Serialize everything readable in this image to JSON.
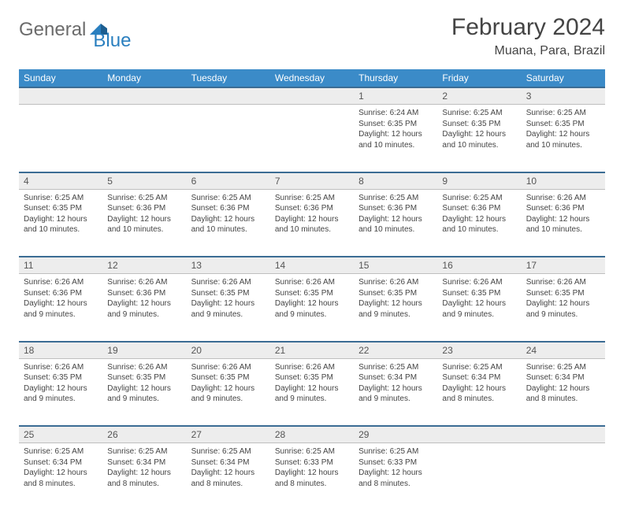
{
  "logo": {
    "word1": "General",
    "word2": "Blue"
  },
  "header": {
    "title": "February 2024",
    "location": "Muana, Para, Brazil"
  },
  "colors": {
    "header_bg": "#3b8bc8",
    "header_text": "#ffffff",
    "daynum_bg": "#ededed",
    "border": "#bfbfbf",
    "row_divider": "#3b6c94",
    "logo_accent": "#2a7fbf",
    "text": "#444444"
  },
  "weekdays": [
    "Sunday",
    "Monday",
    "Tuesday",
    "Wednesday",
    "Thursday",
    "Friday",
    "Saturday"
  ],
  "weeks": [
    {
      "nums": [
        "",
        "",
        "",
        "",
        "1",
        "2",
        "3"
      ],
      "cells": [
        null,
        null,
        null,
        null,
        {
          "sunrise": "Sunrise: 6:24 AM",
          "sunset": "Sunset: 6:35 PM",
          "day1": "Daylight: 12 hours",
          "day2": "and 10 minutes."
        },
        {
          "sunrise": "Sunrise: 6:25 AM",
          "sunset": "Sunset: 6:35 PM",
          "day1": "Daylight: 12 hours",
          "day2": "and 10 minutes."
        },
        {
          "sunrise": "Sunrise: 6:25 AM",
          "sunset": "Sunset: 6:35 PM",
          "day1": "Daylight: 12 hours",
          "day2": "and 10 minutes."
        }
      ]
    },
    {
      "nums": [
        "4",
        "5",
        "6",
        "7",
        "8",
        "9",
        "10"
      ],
      "cells": [
        {
          "sunrise": "Sunrise: 6:25 AM",
          "sunset": "Sunset: 6:35 PM",
          "day1": "Daylight: 12 hours",
          "day2": "and 10 minutes."
        },
        {
          "sunrise": "Sunrise: 6:25 AM",
          "sunset": "Sunset: 6:36 PM",
          "day1": "Daylight: 12 hours",
          "day2": "and 10 minutes."
        },
        {
          "sunrise": "Sunrise: 6:25 AM",
          "sunset": "Sunset: 6:36 PM",
          "day1": "Daylight: 12 hours",
          "day2": "and 10 minutes."
        },
        {
          "sunrise": "Sunrise: 6:25 AM",
          "sunset": "Sunset: 6:36 PM",
          "day1": "Daylight: 12 hours",
          "day2": "and 10 minutes."
        },
        {
          "sunrise": "Sunrise: 6:25 AM",
          "sunset": "Sunset: 6:36 PM",
          "day1": "Daylight: 12 hours",
          "day2": "and 10 minutes."
        },
        {
          "sunrise": "Sunrise: 6:25 AM",
          "sunset": "Sunset: 6:36 PM",
          "day1": "Daylight: 12 hours",
          "day2": "and 10 minutes."
        },
        {
          "sunrise": "Sunrise: 6:26 AM",
          "sunset": "Sunset: 6:36 PM",
          "day1": "Daylight: 12 hours",
          "day2": "and 10 minutes."
        }
      ]
    },
    {
      "nums": [
        "11",
        "12",
        "13",
        "14",
        "15",
        "16",
        "17"
      ],
      "cells": [
        {
          "sunrise": "Sunrise: 6:26 AM",
          "sunset": "Sunset: 6:36 PM",
          "day1": "Daylight: 12 hours",
          "day2": "and 9 minutes."
        },
        {
          "sunrise": "Sunrise: 6:26 AM",
          "sunset": "Sunset: 6:36 PM",
          "day1": "Daylight: 12 hours",
          "day2": "and 9 minutes."
        },
        {
          "sunrise": "Sunrise: 6:26 AM",
          "sunset": "Sunset: 6:35 PM",
          "day1": "Daylight: 12 hours",
          "day2": "and 9 minutes."
        },
        {
          "sunrise": "Sunrise: 6:26 AM",
          "sunset": "Sunset: 6:35 PM",
          "day1": "Daylight: 12 hours",
          "day2": "and 9 minutes."
        },
        {
          "sunrise": "Sunrise: 6:26 AM",
          "sunset": "Sunset: 6:35 PM",
          "day1": "Daylight: 12 hours",
          "day2": "and 9 minutes."
        },
        {
          "sunrise": "Sunrise: 6:26 AM",
          "sunset": "Sunset: 6:35 PM",
          "day1": "Daylight: 12 hours",
          "day2": "and 9 minutes."
        },
        {
          "sunrise": "Sunrise: 6:26 AM",
          "sunset": "Sunset: 6:35 PM",
          "day1": "Daylight: 12 hours",
          "day2": "and 9 minutes."
        }
      ]
    },
    {
      "nums": [
        "18",
        "19",
        "20",
        "21",
        "22",
        "23",
        "24"
      ],
      "cells": [
        {
          "sunrise": "Sunrise: 6:26 AM",
          "sunset": "Sunset: 6:35 PM",
          "day1": "Daylight: 12 hours",
          "day2": "and 9 minutes."
        },
        {
          "sunrise": "Sunrise: 6:26 AM",
          "sunset": "Sunset: 6:35 PM",
          "day1": "Daylight: 12 hours",
          "day2": "and 9 minutes."
        },
        {
          "sunrise": "Sunrise: 6:26 AM",
          "sunset": "Sunset: 6:35 PM",
          "day1": "Daylight: 12 hours",
          "day2": "and 9 minutes."
        },
        {
          "sunrise": "Sunrise: 6:26 AM",
          "sunset": "Sunset: 6:35 PM",
          "day1": "Daylight: 12 hours",
          "day2": "and 9 minutes."
        },
        {
          "sunrise": "Sunrise: 6:25 AM",
          "sunset": "Sunset: 6:34 PM",
          "day1": "Daylight: 12 hours",
          "day2": "and 9 minutes."
        },
        {
          "sunrise": "Sunrise: 6:25 AM",
          "sunset": "Sunset: 6:34 PM",
          "day1": "Daylight: 12 hours",
          "day2": "and 8 minutes."
        },
        {
          "sunrise": "Sunrise: 6:25 AM",
          "sunset": "Sunset: 6:34 PM",
          "day1": "Daylight: 12 hours",
          "day2": "and 8 minutes."
        }
      ]
    },
    {
      "nums": [
        "25",
        "26",
        "27",
        "28",
        "29",
        "",
        ""
      ],
      "cells": [
        {
          "sunrise": "Sunrise: 6:25 AM",
          "sunset": "Sunset: 6:34 PM",
          "day1": "Daylight: 12 hours",
          "day2": "and 8 minutes."
        },
        {
          "sunrise": "Sunrise: 6:25 AM",
          "sunset": "Sunset: 6:34 PM",
          "day1": "Daylight: 12 hours",
          "day2": "and 8 minutes."
        },
        {
          "sunrise": "Sunrise: 6:25 AM",
          "sunset": "Sunset: 6:34 PM",
          "day1": "Daylight: 12 hours",
          "day2": "and 8 minutes."
        },
        {
          "sunrise": "Sunrise: 6:25 AM",
          "sunset": "Sunset: 6:33 PM",
          "day1": "Daylight: 12 hours",
          "day2": "and 8 minutes."
        },
        {
          "sunrise": "Sunrise: 6:25 AM",
          "sunset": "Sunset: 6:33 PM",
          "day1": "Daylight: 12 hours",
          "day2": "and 8 minutes."
        },
        null,
        null
      ]
    }
  ]
}
